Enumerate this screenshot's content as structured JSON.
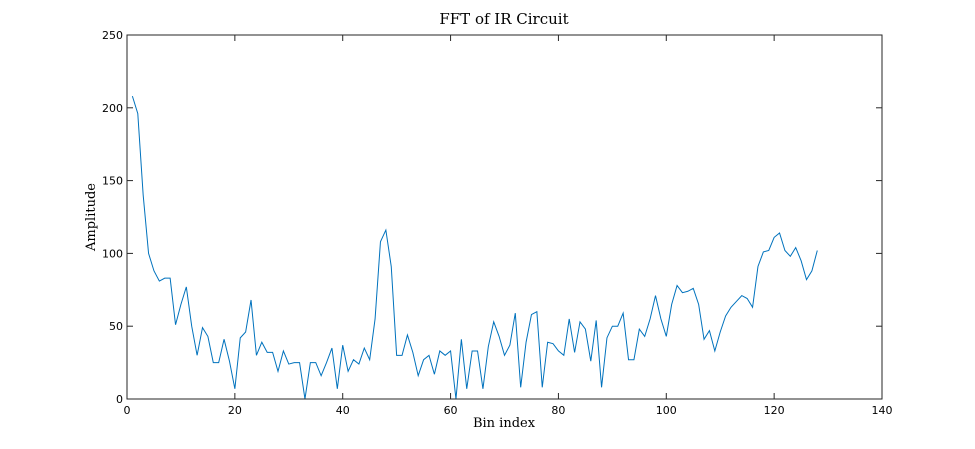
{
  "chart_data": {
    "type": "line",
    "title": "FFT of IR Circuit",
    "xlabel": "Bin index",
    "ylabel": "Amplitude",
    "xlim": [
      0,
      140
    ],
    "ylim": [
      0,
      250
    ],
    "xticks": [
      0,
      20,
      40,
      60,
      80,
      100,
      120,
      140
    ],
    "yticks": [
      0,
      50,
      100,
      150,
      200,
      250
    ],
    "grid": false,
    "legend": "none",
    "series": [
      {
        "color": "#0072BD",
        "x": [
          1,
          2,
          3,
          4,
          5,
          6,
          7,
          8,
          9,
          10,
          11,
          12,
          13,
          14,
          15,
          16,
          17,
          18,
          19,
          20,
          21,
          22,
          23,
          24,
          25,
          26,
          27,
          28,
          29,
          30,
          31,
          32,
          33,
          34,
          35,
          36,
          37,
          38,
          39,
          40,
          41,
          42,
          43,
          44,
          45,
          46,
          47,
          48,
          49,
          50,
          51,
          52,
          53,
          54,
          55,
          56,
          57,
          58,
          59,
          60,
          61,
          62,
          63,
          64,
          65,
          66,
          67,
          68,
          69,
          70,
          71,
          72,
          73,
          74,
          75,
          76,
          77,
          78,
          79,
          80,
          81,
          82,
          83,
          84,
          85,
          86,
          87,
          88,
          89,
          90,
          91,
          92,
          93,
          94,
          95,
          96,
          97,
          98,
          99,
          100,
          101,
          102,
          103,
          104,
          105,
          106,
          107,
          108,
          109,
          110,
          111,
          112,
          113,
          114,
          115,
          116,
          117,
          118,
          119,
          120,
          121,
          122,
          123,
          124,
          125,
          126,
          127,
          128
        ],
        "values": [
          208,
          196,
          140,
          100,
          88,
          81,
          83,
          83,
          51,
          65,
          77,
          50,
          30,
          49,
          43,
          25,
          25,
          41,
          26,
          7,
          42,
          46,
          68,
          30,
          39,
          32,
          32,
          19,
          33,
          24,
          25,
          25,
          0,
          25,
          25,
          16,
          25,
          35,
          7,
          37,
          19,
          27,
          24,
          35,
          27,
          55,
          108,
          116,
          91,
          30,
          30,
          44,
          32,
          16,
          27,
          30,
          17,
          33,
          30,
          33,
          0,
          41,
          7,
          33,
          33,
          7,
          36,
          53,
          43,
          30,
          37,
          59,
          8,
          39,
          58,
          60,
          8,
          39,
          38,
          33,
          30,
          55,
          32,
          53,
          48,
          26,
          54,
          8,
          42,
          50,
          50,
          59,
          27,
          27,
          48,
          43,
          55,
          71,
          55,
          43,
          65,
          78,
          73,
          74,
          76,
          65,
          41,
          47,
          33,
          46,
          57,
          63,
          67,
          71,
          69,
          63,
          91,
          101,
          102,
          111,
          114,
          102,
          98,
          104,
          95,
          82,
          88,
          102
        ]
      }
    ]
  }
}
